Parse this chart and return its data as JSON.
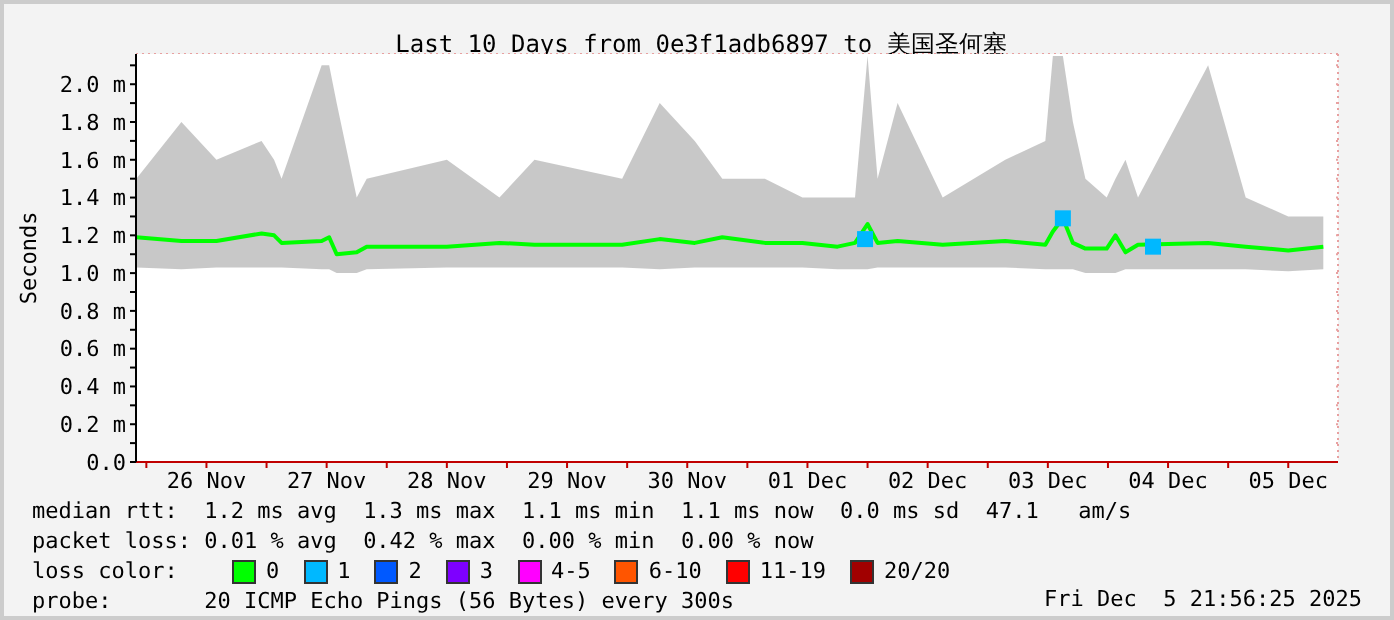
{
  "chart_data": {
    "type": "line",
    "title": "Last 10 Days from 0e3f1adb6897 to 美国圣何塞",
    "ylabel": "Seconds",
    "legend_title": "loss color:",
    "legend": "bottom",
    "grid": true,
    "marker": "none",
    "line_style": "solid",
    "xlim": [
      "2025-11-25T21:56",
      "2025-12-05T21:56"
    ],
    "xticks": [
      {
        "value": "2025-11-26T00:00",
        "label": null
      },
      {
        "value": "2025-11-26T12:00",
        "label": "26 Nov"
      },
      {
        "value": "2025-11-27T00:00",
        "label": null
      },
      {
        "value": "2025-11-27T12:00",
        "label": "27 Nov"
      },
      {
        "value": "2025-11-28T00:00",
        "label": null
      },
      {
        "value": "2025-11-28T12:00",
        "label": "28 Nov"
      },
      {
        "value": "2025-11-29T00:00",
        "label": null
      },
      {
        "value": "2025-11-29T12:00",
        "label": "29 Nov"
      },
      {
        "value": "2025-11-30T00:00",
        "label": null
      },
      {
        "value": "2025-11-30T12:00",
        "label": "30 Nov"
      },
      {
        "value": "2025-12-01T00:00",
        "label": null
      },
      {
        "value": "2025-12-01T12:00",
        "label": "01 Dec"
      },
      {
        "value": "2025-12-02T00:00",
        "label": null
      },
      {
        "value": "2025-12-02T12:00",
        "label": "02 Dec"
      },
      {
        "value": "2025-12-03T00:00",
        "label": null
      },
      {
        "value": "2025-12-03T12:00",
        "label": "03 Dec"
      },
      {
        "value": "2025-12-04T00:00",
        "label": null
      },
      {
        "value": "2025-12-04T12:00",
        "label": "04 Dec"
      },
      {
        "value": "2025-12-05T00:00",
        "label": null
      },
      {
        "value": "2025-12-05T12:00",
        "label": "05 Dec"
      }
    ],
    "ylim": [
      0,
      2.16
    ],
    "yticks": [
      {
        "value": 0,
        "label": "0.0"
      },
      {
        "value": 0.1,
        "label": null
      },
      {
        "value": 0.2,
        "label": "0.2 m"
      },
      {
        "value": 0.3,
        "label": null
      },
      {
        "value": 0.4,
        "label": "0.4 m"
      },
      {
        "value": 0.5,
        "label": null
      },
      {
        "value": 0.6,
        "label": "0.6 m"
      },
      {
        "value": 0.7,
        "label": null
      },
      {
        "value": 0.8,
        "label": "0.8 m"
      },
      {
        "value": 0.9,
        "label": null
      },
      {
        "value": 1.0,
        "label": "1.0 m"
      },
      {
        "value": 1.1,
        "label": null
      },
      {
        "value": 1.2,
        "label": "1.2 m"
      },
      {
        "value": 1.3,
        "label": null
      },
      {
        "value": 1.4,
        "label": "1.4 m"
      },
      {
        "value": 1.5,
        "label": null
      },
      {
        "value": 1.6,
        "label": "1.6 m"
      },
      {
        "value": 1.7,
        "label": null
      },
      {
        "value": 1.8,
        "label": "1.8 m"
      },
      {
        "value": 1.9,
        "label": null
      },
      {
        "value": 2.0,
        "label": "2.0 m"
      },
      {
        "value": 2.1,
        "label": null
      }
    ],
    "x": [
      "2025-11-25T22:00",
      "2025-11-26T07:00",
      "2025-11-26T14:00",
      "2025-11-26T23:00",
      "2025-11-27T01:30",
      "2025-11-27T03:00",
      "2025-11-27T11:00",
      "2025-11-27T12:30",
      "2025-11-27T14:00",
      "2025-11-27T18:00",
      "2025-11-27T20:00",
      "2025-11-28T12:00",
      "2025-11-28T22:30",
      "2025-11-29T05:30",
      "2025-11-29T23:00",
      "2025-11-30T06:30",
      "2025-11-30T13:30",
      "2025-11-30T19:00",
      "2025-12-01T03:30",
      "2025-12-01T11:00",
      "2025-12-01T18:00",
      "2025-12-01T21:30",
      "2025-12-02T00:00",
      "2025-12-02T02:00",
      "2025-12-02T06:00",
      "2025-12-02T15:00",
      "2025-12-03T03:30",
      "2025-12-03T11:30",
      "2025-12-03T13:00",
      "2025-12-03T15:00",
      "2025-12-03T17:00",
      "2025-12-03T19:30",
      "2025-12-03T23:45",
      "2025-12-04T01:30",
      "2025-12-04T03:30",
      "2025-12-04T06:00",
      "2025-12-04T20:00",
      "2025-12-05T03:30",
      "2025-12-05T12:00",
      "2025-12-05T19:00"
    ],
    "series": [
      {
        "name": "0",
        "color": "#00ff00",
        "values": [
          1.19,
          1.17,
          1.17,
          1.21,
          1.2,
          1.16,
          1.17,
          1.19,
          1.1,
          1.11,
          1.14,
          1.14,
          1.16,
          1.15,
          1.15,
          1.18,
          1.16,
          1.19,
          1.16,
          1.16,
          1.14,
          1.16,
          1.26,
          1.16,
          1.17,
          1.15,
          1.17,
          1.15,
          1.22,
          1.29,
          1.16,
          1.13,
          1.13,
          1.2,
          1.11,
          1.15,
          1.16,
          1.14,
          1.12,
          1.14
        ],
        "lower": [
          1.03,
          1.02,
          1.03,
          1.03,
          1.03,
          1.03,
          1.02,
          1.02,
          1.0,
          1.0,
          1.02,
          1.03,
          1.03,
          1.03,
          1.03,
          1.02,
          1.03,
          1.03,
          1.03,
          1.03,
          1.02,
          1.02,
          1.02,
          1.03,
          1.03,
          1.03,
          1.03,
          1.02,
          1.02,
          1.02,
          1.02,
          1.0,
          1.0,
          1.0,
          1.02,
          1.02,
          1.02,
          1.02,
          1.01,
          1.02
        ],
        "upper": [
          1.5,
          1.8,
          1.6,
          1.7,
          1.6,
          1.5,
          2.1,
          2.1,
          1.9,
          1.4,
          1.5,
          1.6,
          1.4,
          1.6,
          1.5,
          1.9,
          1.7,
          1.5,
          1.5,
          1.4,
          1.4,
          1.4,
          2.15,
          1.5,
          1.9,
          1.4,
          1.6,
          1.7,
          2.15,
          2.15,
          1.8,
          1.5,
          1.4,
          1.5,
          1.6,
          1.4,
          2.1,
          1.4,
          1.3,
          1.3
        ]
      },
      {
        "name": "1",
        "color": "#00b8ff",
        "type": "scatter",
        "marker": "square",
        "x": [
          "2025-12-01T23:30",
          "2025-12-03T15:00",
          "2025-12-04T09:00"
        ],
        "values": [
          1.18,
          1.29,
          1.14
        ]
      },
      {
        "name": "2",
        "color": "#0059ff",
        "type": "scatter",
        "values": [
          null,
          null,
          null,
          null,
          null,
          null,
          null,
          null,
          null,
          null,
          null,
          null,
          null,
          null,
          null,
          null,
          null,
          null,
          null,
          null,
          null,
          null,
          null,
          null,
          null,
          null,
          null,
          null,
          null,
          null,
          null,
          null,
          null,
          null,
          null,
          null,
          null,
          null,
          null,
          null
        ]
      },
      {
        "name": "3",
        "color": "#7e00ff",
        "type": "scatter",
        "values": [
          null,
          null,
          null,
          null,
          null,
          null,
          null,
          null,
          null,
          null,
          null,
          null,
          null,
          null,
          null,
          null,
          null,
          null,
          null,
          null,
          null,
          null,
          null,
          null,
          null,
          null,
          null,
          null,
          null,
          null,
          null,
          null,
          null,
          null,
          null,
          null,
          null,
          null,
          null,
          null
        ]
      },
      {
        "name": "4-5",
        "color": "#ff00ff",
        "type": "scatter",
        "values": [
          null,
          null,
          null,
          null,
          null,
          null,
          null,
          null,
          null,
          null,
          null,
          null,
          null,
          null,
          null,
          null,
          null,
          null,
          null,
          null,
          null,
          null,
          null,
          null,
          null,
          null,
          null,
          null,
          null,
          null,
          null,
          null,
          null,
          null,
          null,
          null,
          null,
          null,
          null,
          null
        ]
      },
      {
        "name": "6-10",
        "color": "#ff5500",
        "type": "scatter",
        "values": [
          null,
          null,
          null,
          null,
          null,
          null,
          null,
          null,
          null,
          null,
          null,
          null,
          null,
          null,
          null,
          null,
          null,
          null,
          null,
          null,
          null,
          null,
          null,
          null,
          null,
          null,
          null,
          null,
          null,
          null,
          null,
          null,
          null,
          null,
          null,
          null,
          null,
          null,
          null,
          null
        ]
      },
      {
        "name": "11-19",
        "color": "#ff0000",
        "type": "scatter",
        "values": [
          null,
          null,
          null,
          null,
          null,
          null,
          null,
          null,
          null,
          null,
          null,
          null,
          null,
          null,
          null,
          null,
          null,
          null,
          null,
          null,
          null,
          null,
          null,
          null,
          null,
          null,
          null,
          null,
          null,
          null,
          null,
          null,
          null,
          null,
          null,
          null,
          null,
          null,
          null,
          null
        ]
      },
      {
        "name": "20/20",
        "color": "#a10000",
        "type": "scatter",
        "values": [
          null,
          null,
          null,
          null,
          null,
          null,
          null,
          null,
          null,
          null,
          null,
          null,
          null,
          null,
          null,
          null,
          null,
          null,
          null,
          null,
          null,
          null,
          null,
          null,
          null,
          null,
          null,
          null,
          null,
          null,
          null,
          null,
          null,
          null,
          null,
          null,
          null,
          null,
          null,
          null
        ]
      }
    ],
    "annotations": [
      "median rtt:  1.2 ms avg  1.3 ms max  1.1 ms min  1.1 ms now  0.0 ms sd  47.1   am/s",
      "packet loss: 0.01 % avg  0.42 % max  0.00 % min  0.00 % now",
      "probe:       20 ICMP Echo Pings (56 Bytes) every 300s",
      "Fri Dec  5 21:56:25 2025"
    ]
  }
}
